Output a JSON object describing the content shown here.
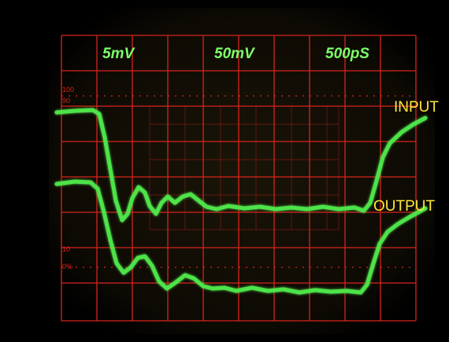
{
  "screen": {
    "settings": [
      "5mV",
      "50mV",
      "500pS"
    ],
    "scale": [
      "100",
      "90",
      "10",
      "0%"
    ]
  },
  "traces": [
    {
      "label": "INPUT"
    },
    {
      "label": "OUTPUT"
    }
  ]
}
